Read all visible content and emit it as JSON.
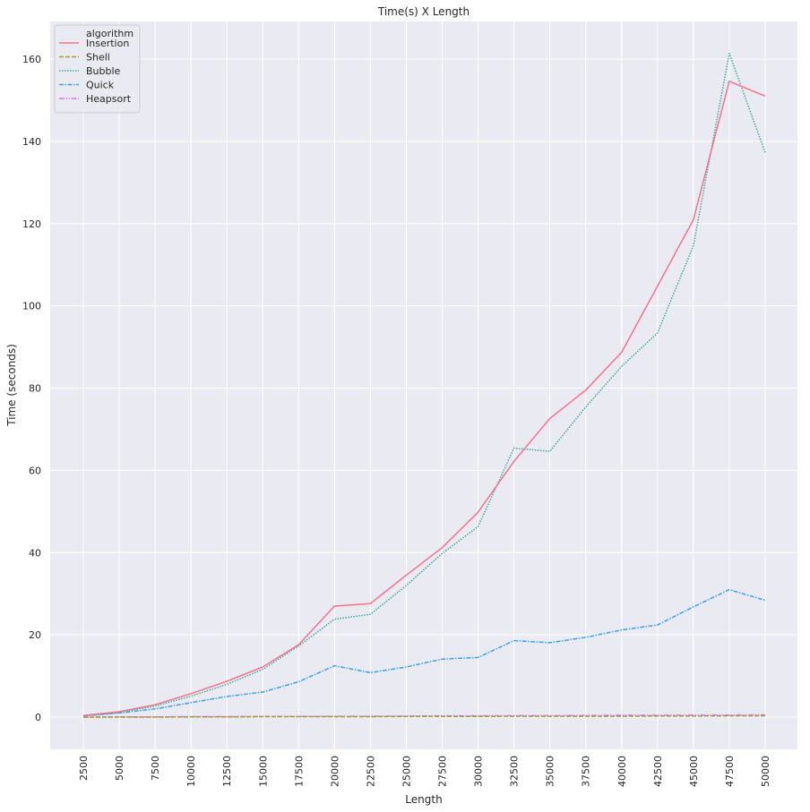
{
  "chart_data": {
    "type": "line",
    "title": "Time(s) X Length",
    "xlabel": "Length",
    "ylabel": "Time (seconds)",
    "x": [
      2500,
      5000,
      7500,
      10000,
      12500,
      15000,
      17500,
      20000,
      22500,
      25000,
      27500,
      30000,
      32500,
      35000,
      37500,
      40000,
      42500,
      45000,
      47500,
      50000
    ],
    "ylim": [
      -8,
      169
    ],
    "yticks": [
      0,
      20,
      40,
      60,
      80,
      100,
      120,
      140,
      160
    ],
    "grid": true,
    "legend": {
      "title": "algorithm",
      "placement": "top-left"
    },
    "series": [
      {
        "name": "Insertion",
        "color": "#f77189",
        "dash": "solid",
        "values": [
          0.4,
          1.3,
          3.0,
          5.7,
          8.7,
          12.2,
          17.6,
          27.0,
          27.6,
          34.5,
          41.2,
          49.8,
          62.2,
          72.6,
          79.5,
          88.7,
          104.8,
          120.9,
          154.6,
          151.0
        ]
      },
      {
        "name": "Shell",
        "color": "#a0a032",
        "dash": "dashed",
        "values": [
          0.0,
          0.0,
          0.0,
          0.05,
          0.05,
          0.1,
          0.1,
          0.1,
          0.1,
          0.15,
          0.15,
          0.15,
          0.2,
          0.2,
          0.2,
          0.2,
          0.25,
          0.25,
          0.3,
          0.3
        ]
      },
      {
        "name": "Bubble",
        "color": "#36ad99",
        "dash": "dotted",
        "values": [
          0.3,
          1.1,
          2.7,
          5.1,
          8.0,
          11.6,
          17.3,
          23.8,
          25.0,
          32.0,
          39.8,
          46.3,
          65.4,
          64.6,
          75.4,
          85.3,
          93.4,
          114.6,
          161.4,
          137.3
        ]
      },
      {
        "name": "Quick",
        "color": "#3ba3ec",
        "dash": "dashdot",
        "values": [
          0.3,
          1.0,
          2.0,
          3.5,
          5.0,
          6.1,
          8.6,
          12.5,
          10.8,
          12.2,
          14.1,
          14.5,
          18.6,
          18.1,
          19.4,
          21.2,
          22.4,
          26.8,
          31.0,
          28.4
        ]
      },
      {
        "name": "Heapsort",
        "color": "#cc7af4",
        "dash": "dashdot-dot",
        "values": [
          0.0,
          0.05,
          0.05,
          0.1,
          0.1,
          0.15,
          0.15,
          0.2,
          0.2,
          0.25,
          0.3,
          0.3,
          0.35,
          0.35,
          0.4,
          0.45,
          0.45,
          0.5,
          0.5,
          0.55
        ]
      }
    ]
  }
}
